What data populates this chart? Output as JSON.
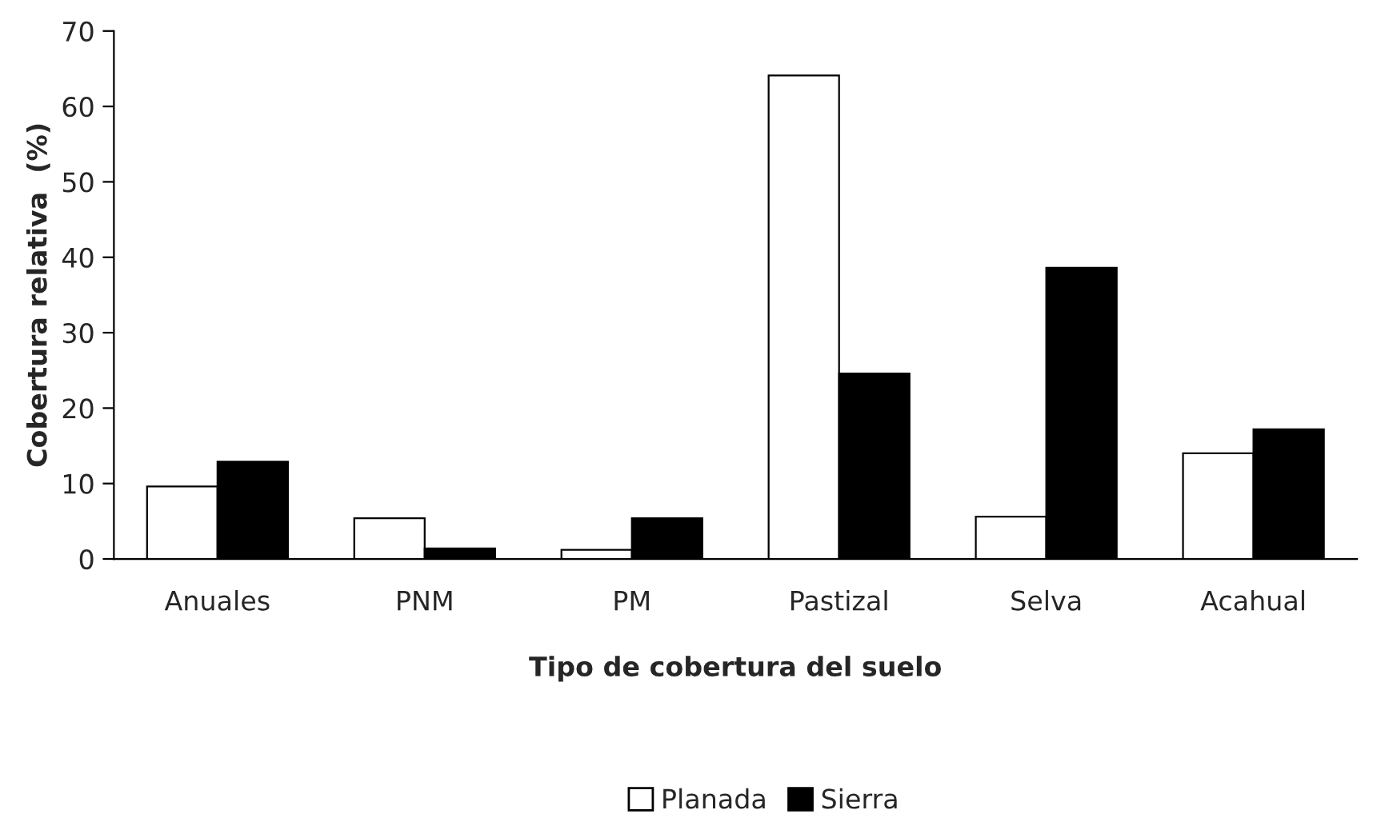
{
  "chart_data": {
    "type": "bar",
    "xlabel": "Tipo de cobertura del suelo",
    "ylabel": "Cobertura relativa  (%)",
    "categories": [
      "Anuales",
      "PNM",
      "PM",
      "Pastizal",
      "Selva",
      "Acahual"
    ],
    "series": [
      {
        "name": "Planada",
        "color": "#ffffff",
        "values": [
          9.6,
          5.4,
          1.2,
          64.1,
          5.6,
          14.0
        ]
      },
      {
        "name": "Sierra",
        "color": "#000000",
        "values": [
          12.9,
          1.4,
          5.4,
          24.6,
          38.6,
          17.2
        ]
      }
    ],
    "ylim": [
      0,
      70
    ],
    "yticks": [
      0,
      10,
      20,
      30,
      40,
      50,
      60,
      70
    ],
    "grid": false,
    "legend": "bottom"
  }
}
